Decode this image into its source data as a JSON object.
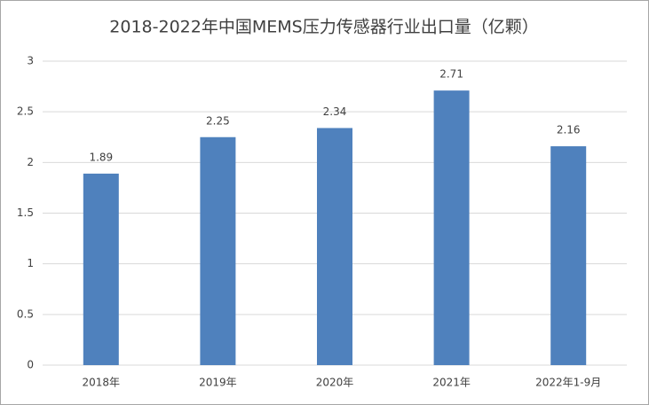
{
  "chart_data": {
    "type": "bar",
    "title": "2018-2022年中国MEMS压力传感器行业出口量（亿颗）",
    "categories": [
      "2018年",
      "2019年",
      "2020年",
      "2021年",
      "2022年1-9月"
    ],
    "values": [
      1.89,
      2.25,
      2.34,
      2.71,
      2.16
    ],
    "color": "#4f81bd",
    "ylim": [
      0,
      3
    ],
    "yticks": [
      0,
      0.5,
      1,
      1.5,
      2,
      2.5,
      3
    ],
    "grid": true
  }
}
